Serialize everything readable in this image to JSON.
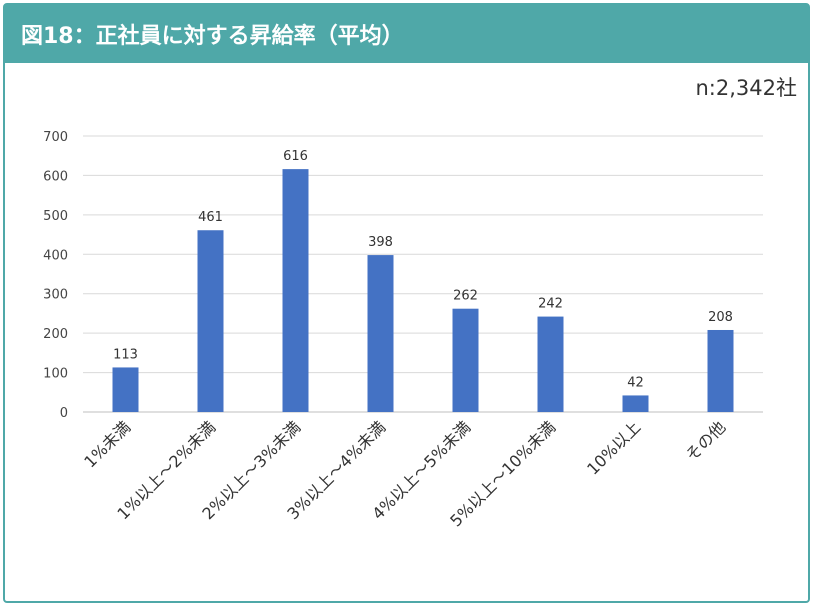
{
  "header": {
    "title": "図18：正社員に対する昇給率（平均）"
  },
  "sample": {
    "text": "n:2,342社"
  },
  "colors": {
    "accent": "#4fa8a8",
    "bar": "#4472c4"
  },
  "chart_data": {
    "type": "bar",
    "title": "",
    "xlabel": "",
    "ylabel": "",
    "ylim": [
      0,
      700
    ],
    "yticks": [
      0,
      100,
      200,
      300,
      400,
      500,
      600,
      700
    ],
    "grid": true,
    "categories": [
      "1%未満",
      "1%以上～2%未満",
      "2%以上～3%未満",
      "3%以上～4%未満",
      "4%以上～5%未満",
      "5%以上～10%未満",
      "10%以上",
      "その他"
    ],
    "values": [
      113,
      461,
      616,
      398,
      262,
      242,
      42,
      208
    ]
  }
}
